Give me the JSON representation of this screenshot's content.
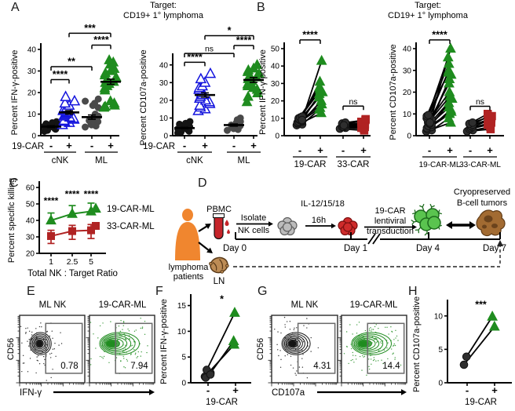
{
  "colors": {
    "green": "#1f8c1f",
    "blue": "#1414dd",
    "red": "#b02323",
    "black": "#141414",
    "gray": "#4a4a4a",
    "orange": "#f0862f",
    "brown": "#a26b32",
    "axis": "#000000"
  },
  "panels": {
    "A": {
      "label": "A",
      "title_line1": "Target:",
      "title_line2": "CD19+ 1° lymphoma"
    },
    "B": {
      "label": "B",
      "title_line1": "Target:",
      "title_line2": "CD19+ 1° lymphoma"
    },
    "C": {
      "label": "C"
    },
    "D": {
      "label": "D",
      "pbmc": "PBMC",
      "isolate_1": "Isolate",
      "isolate_2": "NK cells",
      "il": "IL-12/15/18",
      "h16": "16h",
      "car_1": "19-CAR",
      "car_2": "lentiviral",
      "car_3": "transduction",
      "cryo_1": "Cryopreserved",
      "cryo_2": "B-cell tumors",
      "day0": "Day 0",
      "day1": "Day 1",
      "day4": "Day 4",
      "day7": "Day 7",
      "patients_1": "lymphoma",
      "patients_2": "patients",
      "ln": "LN"
    },
    "E": {
      "label": "E"
    },
    "F": {
      "label": "F"
    },
    "G": {
      "label": "G"
    },
    "H": {
      "label": "H"
    }
  },
  "chart_data": [
    {
      "id": "A1",
      "panel": "A",
      "type": "scatter",
      "ylabel": "Percent IFN-γ-positive",
      "ylim": [
        0,
        40
      ],
      "yticks": [
        0,
        10,
        20,
        30,
        40
      ],
      "row_label": "19-CAR",
      "xticks": [
        "-",
        "+",
        "-",
        "+"
      ],
      "group_labels": [
        "cNK",
        "ML"
      ],
      "series": [
        {
          "name": "cNK-",
          "marker": "circle",
          "color": "black",
          "open": false,
          "values": [
            2,
            2.5,
            3,
            3.2,
            3.5,
            3.8,
            4,
            4.2,
            4.5,
            4.8,
            5,
            5.2,
            5.5,
            6,
            6.5,
            4.4
          ],
          "mean": 4.2,
          "sem": 0.4
        },
        {
          "name": "cNK+",
          "marker": "triangle",
          "color": "blue",
          "open": true,
          "values": [
            5,
            6,
            6.5,
            7,
            7.5,
            8,
            8.5,
            9,
            9.5,
            10,
            10.5,
            11,
            11.5,
            12,
            13,
            14,
            15,
            16,
            18
          ],
          "mean": 10.8,
          "sem": 0.8
        },
        {
          "name": "ML-",
          "marker": "circle",
          "color": "gray",
          "open": false,
          "values": [
            4,
            4.5,
            5,
            5.5,
            6,
            6.5,
            7,
            7.5,
            8,
            8.5,
            9,
            10,
            13,
            14,
            15,
            16,
            17
          ],
          "mean": 8.6,
          "sem": 1.0
        },
        {
          "name": "ML+",
          "marker": "triangle",
          "color": "green",
          "open": false,
          "values": [
            13,
            13.5,
            14,
            15,
            16,
            21,
            22,
            23,
            24,
            24.5,
            25,
            26,
            27,
            28,
            29,
            30,
            31,
            33,
            34,
            35
          ],
          "mean": 25,
          "sem": 1.2
        }
      ],
      "sig": [
        {
          "a": 0,
          "b": 1,
          "label": "****",
          "y": 26
        },
        {
          "a": 0,
          "b": 2,
          "label": "**",
          "y": 32
        },
        {
          "a": 2,
          "b": 3,
          "label": "****",
          "y": 42
        },
        {
          "a": 1,
          "b": 3,
          "label": "***",
          "y": 47.5
        }
      ]
    },
    {
      "id": "A2",
      "panel": "A",
      "type": "scatter",
      "ylabel": "Percent CD107a-positive",
      "ylim": [
        0,
        43
      ],
      "yticks": [
        0,
        10,
        20,
        30,
        40
      ],
      "row_label": "19-CAR",
      "xticks": [
        "-",
        "+",
        "-",
        "+"
      ],
      "group_labels": [
        "cNK",
        "ML"
      ],
      "series": [
        {
          "name": "cNK-",
          "marker": "circle",
          "color": "black",
          "open": false,
          "values": [
            1.5,
            2,
            2.5,
            3,
            3.2,
            3.5,
            4,
            4.2,
            4.5,
            5,
            5.5,
            6,
            6.5,
            7,
            8,
            3.8
          ],
          "mean": 4.3,
          "sem": 0.4
        },
        {
          "name": "cNK+",
          "marker": "triangle",
          "color": "blue",
          "open": true,
          "values": [
            14,
            15,
            16,
            17,
            18,
            19,
            20,
            21,
            22,
            23,
            24,
            25,
            26,
            27,
            28,
            30,
            32,
            35
          ],
          "mean": 23,
          "sem": 1.2
        },
        {
          "name": "ML-",
          "marker": "circle",
          "color": "gray",
          "open": false,
          "values": [
            3,
            3.5,
            4,
            4.5,
            5,
            5.5,
            6,
            6.5,
            7,
            7.5,
            8,
            9,
            10
          ],
          "mean": 6,
          "sem": 0.6
        },
        {
          "name": "ML+",
          "marker": "triangle",
          "color": "green",
          "open": false,
          "values": [
            19,
            22,
            24,
            26,
            27,
            28,
            29,
            30,
            31,
            32,
            33,
            34,
            35,
            36,
            37,
            38,
            40
          ],
          "mean": 31.5,
          "sem": 1.4
        }
      ],
      "sig": [
        {
          "a": 0,
          "b": 1,
          "label": "****",
          "y": 41.5
        },
        {
          "a": 0,
          "b": 2,
          "label": "ns",
          "y": 46.5
        },
        {
          "a": 2,
          "b": 3,
          "label": "****",
          "y": 51
        },
        {
          "a": 1,
          "b": 3,
          "label": "*",
          "y": 56.5
        }
      ]
    },
    {
      "id": "B1",
      "panel": "B",
      "type": "paired",
      "ylabel": "Percent IFN-γ-positive",
      "ylim": [
        0,
        50
      ],
      "yticks": [
        0,
        10,
        20,
        30,
        40,
        50
      ],
      "groups": [
        {
          "name": "19-CAR",
          "xticks": [
            "-",
            "+"
          ],
          "underline": true,
          "plus_marker": "triangle",
          "plus_color": "green",
          "pairs": [
            [
              6,
              13
            ],
            [
              6.5,
              15
            ],
            [
              7,
              16
            ],
            [
              7.5,
              18
            ],
            [
              8,
              20
            ],
            [
              8,
              22
            ],
            [
              8.5,
              24
            ],
            [
              9,
              25
            ],
            [
              9.5,
              26
            ],
            [
              10,
              27
            ],
            [
              10.5,
              28
            ],
            [
              11,
              31
            ],
            [
              9,
              43
            ]
          ],
          "sig": "****",
          "sig_y": 55,
          "bracket": true
        },
        {
          "name": "33-CAR",
          "xticks": [
            "-",
            "+"
          ],
          "underline": true,
          "plus_marker": "square",
          "plus_color": "red",
          "pairs": [
            [
              4,
              3
            ],
            [
              4.5,
              4
            ],
            [
              5,
              4.5
            ],
            [
              5,
              5
            ],
            [
              5.5,
              6
            ],
            [
              6,
              6.5
            ],
            [
              6.5,
              7
            ],
            [
              7,
              8
            ],
            [
              7.5,
              9
            ],
            [
              6,
              9.5
            ]
          ],
          "sig": "ns",
          "sig_y": 17,
          "bracket": true
        }
      ]
    },
    {
      "id": "B2",
      "panel": "B",
      "type": "paired",
      "ylabel": "Percent CD107a-positive",
      "ylim": [
        0,
        40
      ],
      "yticks": [
        0,
        10,
        20,
        30,
        40
      ],
      "groups": [
        {
          "name": "19-CAR-ML",
          "xticks": [
            "-",
            "+"
          ],
          "underline": true,
          "plus_marker": "triangle",
          "plus_color": "green",
          "pairs": [
            [
              2,
              6
            ],
            [
              2.5,
              8
            ],
            [
              3,
              10
            ],
            [
              3.5,
              11
            ],
            [
              4,
              12
            ],
            [
              4.5,
              13
            ],
            [
              5,
              15
            ],
            [
              5.5,
              17
            ],
            [
              6,
              18
            ],
            [
              6.5,
              20
            ],
            [
              7,
              24
            ],
            [
              7,
              26
            ],
            [
              7.5,
              28
            ],
            [
              8,
              29
            ],
            [
              8.5,
              30
            ],
            [
              9,
              33
            ],
            [
              9.5,
              36
            ],
            [
              6,
              40
            ]
          ],
          "sig": "****",
          "sig_y": 44,
          "bracket": true
        },
        {
          "name": "33-CAR-ML",
          "xticks": [
            "-",
            "+"
          ],
          "underline": true,
          "plus_marker": "square",
          "plus_color": "red",
          "pairs": [
            [
              2,
              3
            ],
            [
              2.5,
              4
            ],
            [
              3,
              5
            ],
            [
              3.5,
              6
            ],
            [
              4,
              7
            ],
            [
              4.5,
              8
            ],
            [
              5,
              9
            ],
            [
              5.5,
              10
            ],
            [
              6,
              9
            ]
          ],
          "sig": "ns",
          "sig_y": 13.5,
          "bracket": true
        }
      ]
    },
    {
      "id": "C",
      "panel": "C",
      "type": "line",
      "ylabel": "Percent specific killing",
      "xlabel": "Total NK : Target Ratio",
      "ylim": [
        20,
        60
      ],
      "yticks": [
        20,
        30,
        40,
        50,
        60
      ],
      "categories": [
        "1",
        "2.5",
        "5"
      ],
      "series": [
        {
          "name": "19-CAR-ML",
          "marker": "triangle",
          "color": "green",
          "values": [
            40,
            44,
            45.5
          ],
          "err_up": [
            4.5,
            5,
            5
          ],
          "err_dn": [
            1.5,
            1.5,
            1.5
          ]
        },
        {
          "name": "33-CAR-ML",
          "marker": "square",
          "color": "red",
          "values": [
            30.5,
            33.5,
            34
          ],
          "err_up": [
            3.5,
            3.5,
            3.5
          ],
          "err_dn": [
            4.5,
            5,
            5
          ]
        }
      ],
      "sig": [
        {
          "cat": 0,
          "label": "****",
          "y": 50
        },
        {
          "cat": 1,
          "label": "****",
          "y": 54
        },
        {
          "cat": 2,
          "label": "****",
          "y": 54
        }
      ]
    },
    {
      "id": "E",
      "panel": "E",
      "type": "flow",
      "ylabel": "CD56",
      "xlabel": "IFN-γ",
      "plots": [
        {
          "title": "ML NK",
          "color": "black",
          "value": "0.78",
          "tail": "none"
        },
        {
          "title": "19-CAR-ML",
          "color": "green",
          "value": "7.94",
          "tail": "big"
        }
      ]
    },
    {
      "id": "F",
      "panel": "F",
      "type": "paired",
      "ylabel": "Percent IFN-γ-positive",
      "ylim": [
        0,
        16
      ],
      "yticks": [
        0,
        5,
        10,
        15
      ],
      "groups": [
        {
          "name": "19-CAR",
          "xticks": [
            "-",
            "+"
          ],
          "underline": false,
          "plus_marker": "triangle",
          "plus_color": "green",
          "pairs": [
            [
              1.2,
              7.4
            ],
            [
              1.9,
              8.1
            ],
            [
              2.5,
              13.6
            ]
          ],
          "extra_minus": [
            1.0,
            1.6
          ],
          "sig": "*",
          "sig_y": 15.6,
          "bracket": false
        }
      ]
    },
    {
      "id": "G",
      "panel": "G",
      "type": "flow",
      "ylabel": "CD56",
      "xlabel": "CD107a",
      "plots": [
        {
          "title": "ML NK",
          "color": "black",
          "value": "4.31",
          "tail": "small"
        },
        {
          "title": "19-CAR-ML",
          "color": "green",
          "value": "14.4",
          "tail": "big"
        }
      ]
    },
    {
      "id": "H",
      "panel": "H",
      "type": "paired",
      "ylabel": "Percent CD107a-positive",
      "ylim": [
        0,
        11.5
      ],
      "yticks": [
        0,
        5,
        10
      ],
      "groups": [
        {
          "name": "19-CAR",
          "xticks": [
            "-",
            "+"
          ],
          "underline": false,
          "plus_marker": "triangle",
          "plus_color": "green",
          "pairs": [
            [
              2.7,
              8.4
            ],
            [
              3.9,
              9.9
            ]
          ],
          "sig": "***",
          "sig_y": 11.2,
          "bracket": false
        }
      ]
    }
  ]
}
